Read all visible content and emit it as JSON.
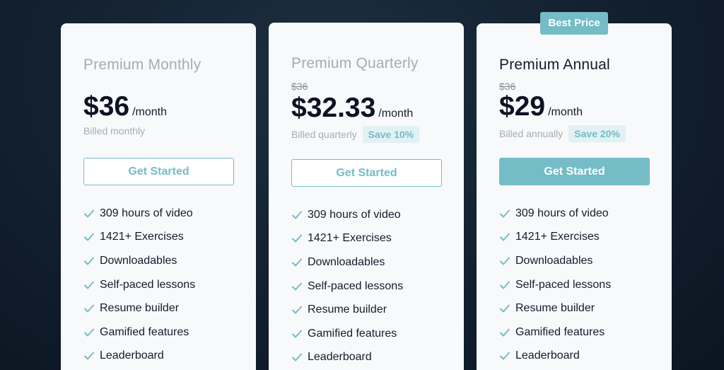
{
  "colors": {
    "accent": "#74bcc6",
    "accent_light": "#e2f1f3",
    "card_bg": "#f8f9fb",
    "text_dark": "#151b2b",
    "text_muted": "#a7abb3"
  },
  "icons": {
    "feature_check": "check-icon"
  },
  "plans": [
    {
      "name": "Premium Monthly",
      "old_price": "",
      "price": "$36",
      "per": "/month",
      "billed": "Billed monthly",
      "save": "",
      "cta": "Get Started",
      "badge": "",
      "features": [
        "309 hours of video",
        "1421+ Exercises",
        "Downloadables",
        "Self-paced lessons",
        "Resume builder",
        "Gamified features",
        "Leaderboard"
      ]
    },
    {
      "name": "Premium Quarterly",
      "old_price": "$36",
      "price": "$32.33",
      "per": "/month",
      "billed": "Billed quarterly",
      "save": "Save 10%",
      "cta": "Get Started",
      "badge": "",
      "features": [
        "309 hours of video",
        "1421+ Exercises",
        "Downloadables",
        "Self-paced lessons",
        "Resume builder",
        "Gamified features",
        "Leaderboard"
      ]
    },
    {
      "name": "Premium Annual",
      "old_price": "$36",
      "price": "$29",
      "per": "/month",
      "billed": "Billed annually",
      "save": "Save 20%",
      "cta": "Get Started",
      "badge": "Best Price",
      "features": [
        "309 hours of video",
        "1421+ Exercises",
        "Downloadables",
        "Self-paced lessons",
        "Resume builder",
        "Gamified features",
        "Leaderboard"
      ]
    }
  ]
}
